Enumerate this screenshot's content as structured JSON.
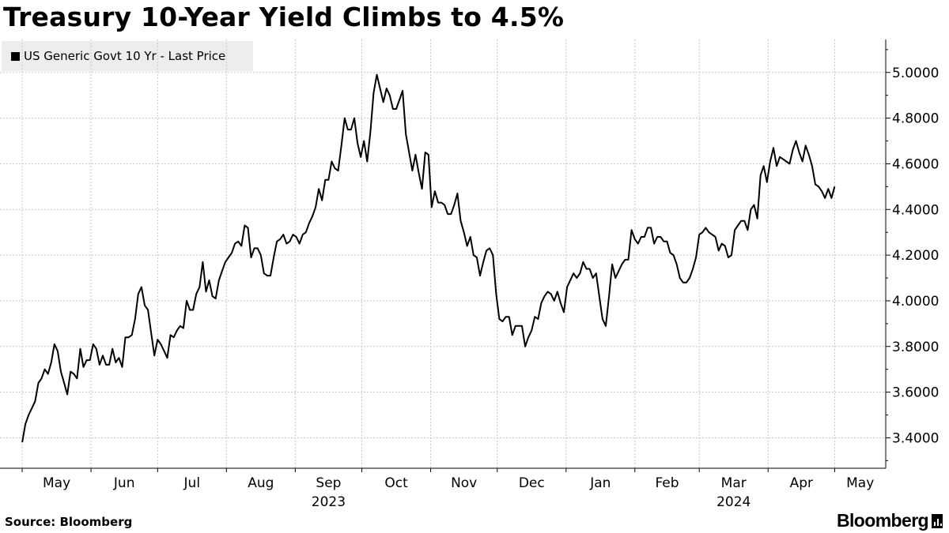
{
  "chart_data": {
    "type": "line",
    "title": "Treasury 10-Year Yield Climbs to 4.5%",
    "source": "Source: Bloomberg",
    "brand": "Bloomberg",
    "legend_position": "top-left",
    "grid": true,
    "ylim": [
      3.2667,
      5.1444
    ],
    "yticks": [
      3.4,
      3.6,
      3.8,
      4.0,
      4.2,
      4.4,
      4.6,
      4.8,
      5.0
    ],
    "ytick_labels": [
      "3.4000",
      "3.6000",
      "3.8000",
      "4.0000",
      "4.2000",
      "4.4000",
      "4.6000",
      "4.8000",
      "5.0000"
    ],
    "month_labels": [
      "May",
      "Jun",
      "Jul",
      "Aug",
      "Sep",
      "Oct",
      "Nov",
      "Dec",
      "Jan",
      "Feb",
      "Mar",
      "Apr",
      "May"
    ],
    "year_labels": [
      {
        "label": "2023",
        "month_index": 4
      },
      {
        "label": "2024",
        "month_index": 10
      }
    ],
    "series": [
      {
        "name": "US Generic Govt 10 Yr - Last Price",
        "color": "#000000",
        "x_start": "2023-05-01",
        "x_end": "2024-05-01",
        "x_min": "2023-04-21",
        "x_max": "2024-05-24",
        "values": [
          3.38,
          3.46,
          3.5,
          3.53,
          3.56,
          3.64,
          3.66,
          3.7,
          3.68,
          3.73,
          3.81,
          3.78,
          3.69,
          3.64,
          3.59,
          3.69,
          3.68,
          3.66,
          3.79,
          3.71,
          3.74,
          3.74,
          3.81,
          3.79,
          3.72,
          3.76,
          3.72,
          3.72,
          3.79,
          3.73,
          3.75,
          3.71,
          3.84,
          3.84,
          3.85,
          3.92,
          4.03,
          4.06,
          3.98,
          3.96,
          3.86,
          3.76,
          3.83,
          3.81,
          3.78,
          3.75,
          3.85,
          3.84,
          3.87,
          3.89,
          3.88,
          4.0,
          3.96,
          3.96,
          4.03,
          4.06,
          4.17,
          4.04,
          4.09,
          4.02,
          4.01,
          4.09,
          4.13,
          4.17,
          4.19,
          4.21,
          4.25,
          4.26,
          4.24,
          4.33,
          4.32,
          4.19,
          4.23,
          4.23,
          4.2,
          4.12,
          4.11,
          4.11,
          4.19,
          4.26,
          4.27,
          4.29,
          4.25,
          4.26,
          4.29,
          4.28,
          4.25,
          4.29,
          4.3,
          4.34,
          4.37,
          4.41,
          4.49,
          4.44,
          4.53,
          4.53,
          4.61,
          4.58,
          4.57,
          4.68,
          4.8,
          4.75,
          4.75,
          4.8,
          4.69,
          4.63,
          4.7,
          4.61,
          4.74,
          4.91,
          4.99,
          4.93,
          4.87,
          4.93,
          4.9,
          4.84,
          4.84,
          4.88,
          4.92,
          4.73,
          4.65,
          4.57,
          4.64,
          4.56,
          4.49,
          4.65,
          4.64,
          4.41,
          4.48,
          4.43,
          4.43,
          4.42,
          4.38,
          4.38,
          4.42,
          4.47,
          4.35,
          4.3,
          4.24,
          4.28,
          4.2,
          4.19,
          4.11,
          4.17,
          4.22,
          4.23,
          4.2,
          4.03,
          3.92,
          3.91,
          3.93,
          3.93,
          3.85,
          3.89,
          3.89,
          3.89,
          3.8,
          3.84,
          3.87,
          3.93,
          3.92,
          3.99,
          4.02,
          4.04,
          4.03,
          4.0,
          4.04,
          3.99,
          3.95,
          4.06,
          4.09,
          4.12,
          4.1,
          4.12,
          4.17,
          4.14,
          4.14,
          4.1,
          4.12,
          4.02,
          3.92,
          3.89,
          4.02,
          4.16,
          4.1,
          4.13,
          4.16,
          4.18,
          4.18,
          4.31,
          4.27,
          4.25,
          4.28,
          4.28,
          4.32,
          4.32,
          4.25,
          4.28,
          4.28,
          4.26,
          4.26,
          4.21,
          4.2,
          4.16,
          4.1,
          4.08,
          4.08,
          4.1,
          4.14,
          4.19,
          4.29,
          4.3,
          4.32,
          4.3,
          4.29,
          4.28,
          4.22,
          4.25,
          4.24,
          4.19,
          4.2,
          4.31,
          4.33,
          4.35,
          4.35,
          4.31,
          4.4,
          4.42,
          4.36,
          4.55,
          4.59,
          4.52,
          4.61,
          4.67,
          4.59,
          4.63,
          4.62,
          4.61,
          4.6,
          4.66,
          4.7,
          4.65,
          4.61,
          4.68,
          4.64,
          4.59,
          4.51,
          4.5,
          4.48,
          4.45,
          4.49,
          4.45,
          4.5
        ]
      }
    ]
  }
}
